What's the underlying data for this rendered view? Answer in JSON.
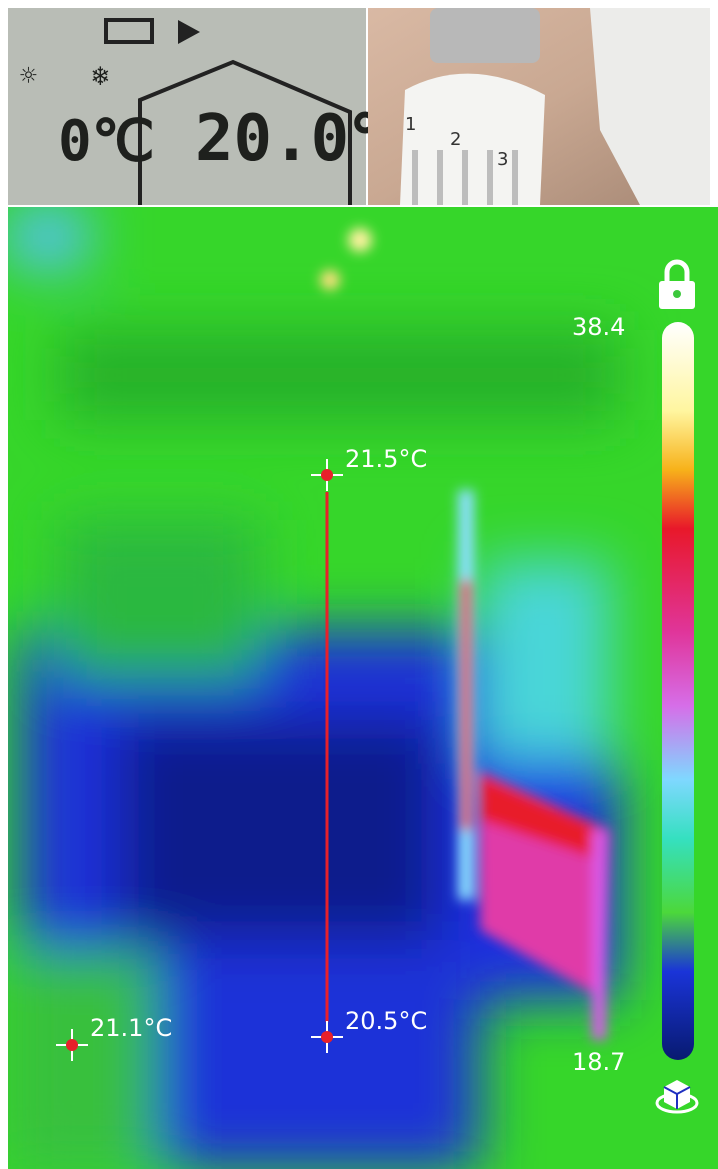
{
  "thermostat_display": {
    "outdoor": "0℃",
    "setpoint": "20.0℃"
  },
  "valve_dial": {
    "marks": [
      "1",
      "2",
      "3"
    ]
  },
  "thermal": {
    "spots": [
      {
        "label": "21.5°C"
      },
      {
        "label": "20.5°C"
      },
      {
        "label": "21.1°C"
      }
    ],
    "scale": {
      "max": "38.4",
      "min": "18.7"
    }
  }
}
